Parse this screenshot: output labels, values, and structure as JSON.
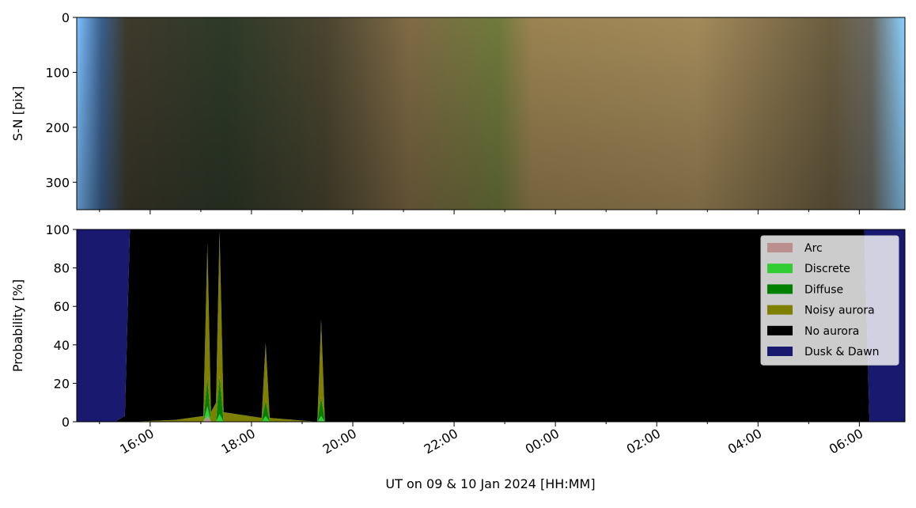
{
  "chart_data": [
    {
      "type": "image",
      "ylabel": "S-N [pix]",
      "ylim": [
        0,
        350
      ],
      "yticks": [
        0,
        100,
        200,
        300
      ],
      "y_inverted": true
    },
    {
      "type": "stacked_area",
      "ylabel": "Probability [%]",
      "xlabel": "UT on 09 & 10 Jan 2024 [HH:MM]",
      "xlim": [
        14.55,
        30.9
      ],
      "xticks": [
        {
          "value": 16,
          "label": "16:00"
        },
        {
          "value": 18,
          "label": "18:00"
        },
        {
          "value": 20,
          "label": "20:00"
        },
        {
          "value": 22,
          "label": "22:00"
        },
        {
          "value": 24,
          "label": "00:00"
        },
        {
          "value": 26,
          "label": "02:00"
        },
        {
          "value": 28,
          "label": "04:00"
        },
        {
          "value": 30,
          "label": "06:00"
        }
      ],
      "xminorticks": [
        15,
        17,
        19,
        21,
        23,
        25,
        27,
        29
      ],
      "ylim": [
        0,
        100
      ],
      "yticks": [
        0,
        20,
        40,
        60,
        80,
        100
      ],
      "legend": "upper right",
      "x": [
        14.55,
        15.3,
        15.5,
        15.6,
        16.5,
        17.05,
        17.13,
        17.2,
        17.3,
        17.37,
        17.45,
        18.2,
        18.28,
        18.36,
        19.3,
        19.375,
        19.45,
        20.0,
        25.0,
        30.1,
        30.2,
        30.9
      ],
      "series": [
        {
          "name": "Arc",
          "color": "#bc8f8f",
          "values": [
            0,
            0,
            0,
            0,
            0,
            0,
            3,
            0,
            0,
            0,
            0,
            0,
            0,
            0,
            0,
            0,
            0,
            0,
            0,
            0,
            0,
            0
          ]
        },
        {
          "name": "Discrete",
          "color": "#32cd32",
          "values": [
            0,
            0,
            0,
            0,
            0,
            0,
            5,
            0,
            0,
            4,
            0,
            0,
            3,
            0,
            0,
            3,
            0,
            0,
            0,
            0,
            0,
            0
          ]
        },
        {
          "name": "Diffuse",
          "color": "#008000",
          "values": [
            0,
            0,
            0,
            0,
            0,
            0,
            15,
            0,
            0,
            20,
            0,
            0,
            8,
            0,
            0,
            10,
            0,
            0,
            0,
            0,
            0,
            0
          ]
        },
        {
          "name": "Noisy aurora",
          "color": "#808000",
          "values": [
            0,
            0,
            0,
            0,
            1,
            3,
            70,
            5,
            10,
            75,
            5,
            2,
            30,
            2,
            0,
            40,
            0,
            0,
            0,
            0,
            0,
            0
          ]
        },
        {
          "name": "No aurora",
          "color": "#000000",
          "values": [
            0,
            0,
            3,
            100,
            99,
            97,
            7,
            95,
            90,
            1,
            95,
            98,
            59,
            98,
            100,
            47,
            100,
            100,
            100,
            100,
            0,
            0
          ]
        },
        {
          "name": "Dusk & Dawn",
          "color": "#191970",
          "values": [
            100,
            100,
            97,
            0,
            0,
            0,
            0,
            0,
            0,
            0,
            0,
            0,
            0,
            0,
            0,
            0,
            0,
            0,
            0,
            0,
            100,
            100
          ]
        }
      ]
    }
  ]
}
